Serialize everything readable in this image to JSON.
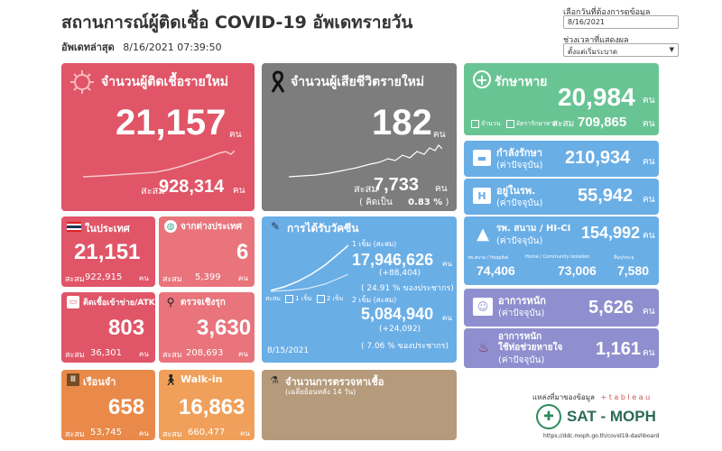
{
  "header": {
    "title": "สถานการณ์ผู้ติดเชื้อ COVID-19 อัพเดทรายวัน",
    "updated_label": "อัพเดทล่าสุด",
    "updated_value": "8/16/2021 07:39:50"
  },
  "controls": {
    "date_label": "เลือกวันที่ต้องการดูข้อมูล",
    "date_value": "8/16/2021",
    "range_label": "ช่วงเวลาที่แสดงผล",
    "range_value": "ตั้งแต่เริ่มระบาด"
  },
  "unit": "คน",
  "cumulative_label": "สะสม",
  "new_cases": {
    "title": "จำนวนผู้ติดเชื้อรายใหม่",
    "value": "21,157",
    "cumulative": "928,314",
    "color": "#e05567"
  },
  "deaths": {
    "title": "จำนวนผู้เสียชีวิตรายใหม่",
    "value": "182",
    "cumulative": "7,733",
    "rate_label": "( คิดเป็น",
    "rate_value": "0.83 %",
    "rate_close": ")"
  },
  "recovered": {
    "title": "รักษาหาย",
    "value": "20,984",
    "legend_count": "จำนวน",
    "legend_rate": "อัตรารักษาหาย",
    "cumulative": "709,865"
  },
  "treating": {
    "title": "กำลังรักษา",
    "sub": "(ค่าปัจจุบัน)",
    "value": "210,934"
  },
  "hospital": {
    "title": "อยู่ในรพ.",
    "sub": "(ค่าปัจจุบัน)",
    "value": "55,942"
  },
  "field_hospital": {
    "title": "รพ. สนาม / HI-CI",
    "sub": "(ค่าปัจจุบัน)",
    "value": "154,992",
    "items": [
      {
        "label": "รพ.สนาม / Hospitel",
        "value": "74,406"
      },
      {
        "label": "Home / Community Isolation",
        "value": "73,006"
      },
      {
        "label": "อื่นๆ/ประจุ",
        "value": "7,580"
      }
    ]
  },
  "severe": {
    "title": "อาการหนัก",
    "sub": "(ค่าปัจจุบัน)",
    "value": "5,626"
  },
  "ventilator": {
    "title": "อาการหนัก",
    "title2": "ใช้ท่อช่วยหายใจ",
    "sub": "(ค่าปัจจุบัน)",
    "value": "1,161"
  },
  "domestic": {
    "title": "ในประเทศ",
    "value": "21,151",
    "cumulative": "922,915"
  },
  "imported": {
    "title": "จากต่างประเทศ",
    "value": "6",
    "cumulative": "5,399"
  },
  "atk": {
    "title": "ติดเชื้อเข้าข่าย/ATK",
    "value": "803",
    "cumulative": "36,301"
  },
  "proactive": {
    "title": "ตรวจเชิงรุก",
    "value": "3,630",
    "cumulative": "208,693"
  },
  "prison": {
    "title": "เรือนจำ",
    "value": "658",
    "cumulative": "53,745"
  },
  "walkin": {
    "title": "Walk-in",
    "value": "16,863",
    "cumulative": "660,477"
  },
  "vaccine": {
    "title": "การได้รับวัคซีน",
    "dose1_label": "1 เข็ม (สะสม)",
    "dose1_value": "17,946,626",
    "dose1_delta": "(+88,404)",
    "dose1_pct": "( 24.91 % ของประชากร)",
    "dose2_label": "2 เข็ม (สะสม)",
    "dose2_value": "5,084,940",
    "dose2_delta": "(+24,092)",
    "dose2_pct": "( 7.06 % ของประชากร)",
    "legend_cum": "สะสม",
    "legend_d1": "1 เข็ม",
    "legend_d2": "2 เข็ม",
    "date": "8/15/2021"
  },
  "tests": {
    "title": "จำนวนการตรวจหาเชื้อ",
    "sub": "(เฉลี่ยย้อนหลัง 14 วัน)"
  },
  "source": {
    "label": "แหล่งที่มาของข้อมูล",
    "tableau": "+ t a b l e a u",
    "org": "SAT - MOPH",
    "url": "https://ddc.moph.go.th/covid19-dashboard"
  },
  "icons": [
    "virus-icon",
    "ribbon-icon",
    "cross-icon",
    "bed-icon",
    "hospital-icon",
    "tent-icon",
    "person-bed-icon",
    "ventilator-icon",
    "thai-flag-icon",
    "globe-icon",
    "test-kit-icon",
    "magnifier-icon",
    "syringe-icon",
    "prison-icon",
    "walk-icon",
    "lab-icon",
    "moph-logo"
  ]
}
